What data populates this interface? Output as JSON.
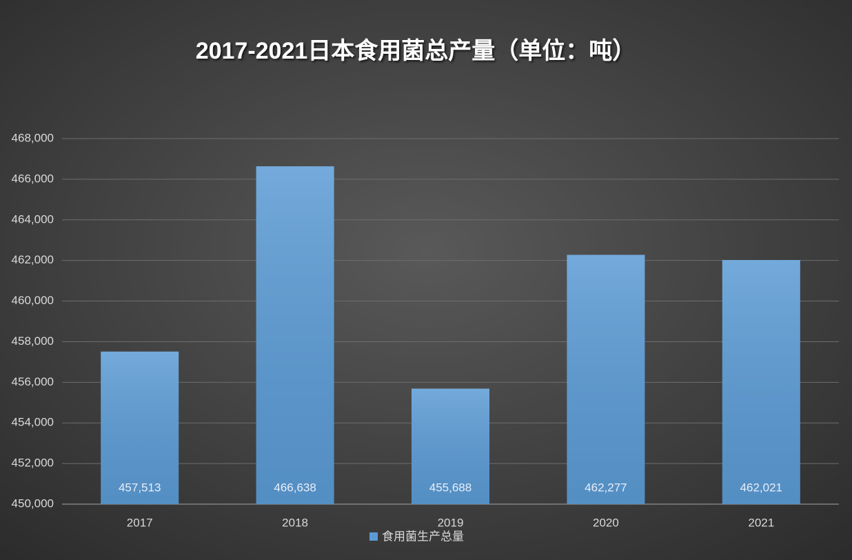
{
  "chart_data": {
    "type": "bar",
    "title": "2017-2021日本食用菌总产量（单位：吨）",
    "categories": [
      "2017",
      "2018",
      "2019",
      "2020",
      "2021"
    ],
    "series": [
      {
        "name": "食用菌生产总量",
        "color": "#5b9bd5",
        "values": [
          457513,
          466638,
          455688,
          462277,
          462021
        ],
        "value_labels": [
          "457,513",
          "466,638",
          "455,688",
          "462,277",
          "462,021"
        ]
      }
    ],
    "ylim": [
      450000,
      468000
    ],
    "yticks": [
      {
        "value": 450000,
        "label": "450,000"
      },
      {
        "value": 452000,
        "label": "452,000"
      },
      {
        "value": 454000,
        "label": "454,000"
      },
      {
        "value": 456000,
        "label": "456,000"
      },
      {
        "value": 458000,
        "label": "458,000"
      },
      {
        "value": 460000,
        "label": "460,000"
      },
      {
        "value": 462000,
        "label": "462,000"
      },
      {
        "value": 464000,
        "label": "464,000"
      },
      {
        "value": 466000,
        "label": "466,000"
      },
      {
        "value": 468000,
        "label": "468,000"
      }
    ],
    "grid": true,
    "legend": "bottom"
  }
}
